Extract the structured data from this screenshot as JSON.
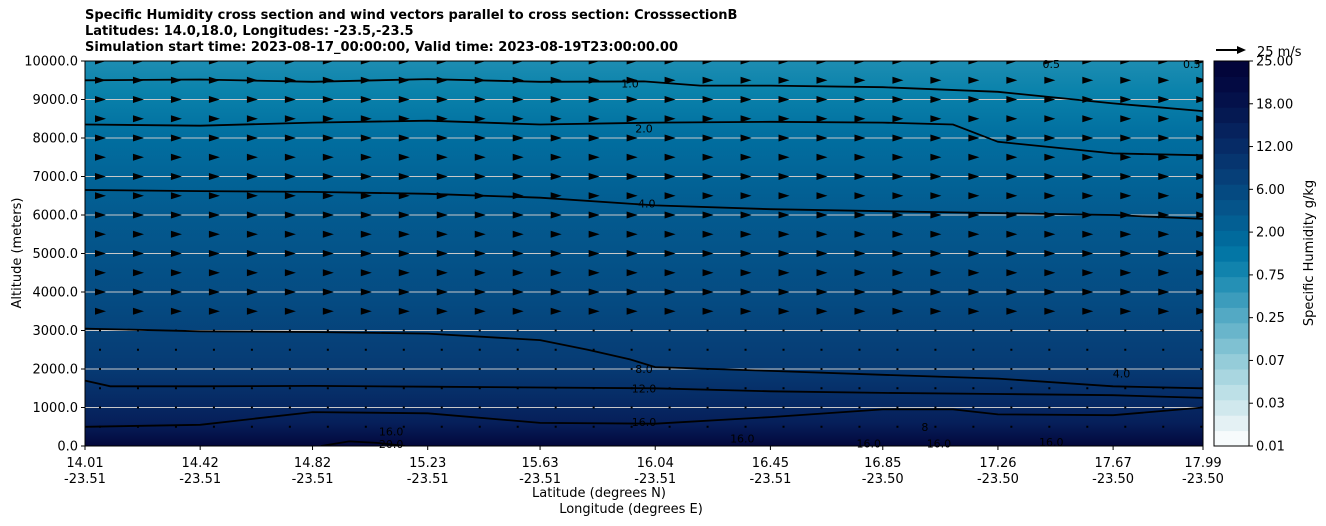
{
  "chart_data": {
    "type": "heatmap",
    "title_lines": [
      "Specific Humidity cross section and wind vectors parallel to cross section: CrosssectionB",
      "Latitudes: 14.0,18.0, Longitudes: -23.5,-23.5",
      "Simulation start time: 2023-08-17_00:00:00, Valid time: 2023-08-19T23:00:00.00"
    ],
    "ylabel": "Altitude (meters)",
    "xlabel_lat": "Latitude (degrees N)",
    "xlabel_lon": "Longitude (degrees E)",
    "ylim": [
      0,
      10000
    ],
    "y_ticks": [
      "0.0",
      "1000.0",
      "2000.0",
      "3000.0",
      "4000.0",
      "5000.0",
      "6000.0",
      "7000.0",
      "8000.0",
      "9000.0",
      "10000.0"
    ],
    "x_ticks": [
      {
        "lat": "14.01",
        "lon": "-23.51"
      },
      {
        "lat": "14.42",
        "lon": "-23.51"
      },
      {
        "lat": "14.82",
        "lon": "-23.51"
      },
      {
        "lat": "15.23",
        "lon": "-23.51"
      },
      {
        "lat": "15.63",
        "lon": "-23.51"
      },
      {
        "lat": "16.04",
        "lon": "-23.51"
      },
      {
        "lat": "16.45",
        "lon": "-23.51"
      },
      {
        "lat": "16.85",
        "lon": "-23.50"
      },
      {
        "lat": "17.26",
        "lon": "-23.50"
      },
      {
        "lat": "17.67",
        "lon": "-23.50"
      },
      {
        "lat": "17.99",
        "lon": "-23.50"
      }
    ],
    "colorbar": {
      "label": "Specific Humidity g/kg",
      "ticks": [
        "0.01",
        "0.03",
        "0.07",
        "0.25",
        "0.75",
        "2.00",
        "6.00",
        "12.00",
        "18.00",
        "25.00"
      ],
      "colors": [
        "#f7fbfc",
        "#e4f1f4",
        "#d0e8ed",
        "#bde0e7",
        "#a9d6e0",
        "#95ccd9",
        "#7fc1d2",
        "#69b5cb",
        "#53a9c4",
        "#3c9cbc",
        "#2590b5",
        "#1183ad",
        "#0376a5",
        "#016a9c",
        "#035f93",
        "#05548a",
        "#054a81",
        "#063f78",
        "#06356f",
        "#062b66",
        "#06225d",
        "#051952",
        "#04114a",
        "#030a42",
        "#02053a"
      ]
    },
    "quiver_key": "25 m/s",
    "contours": [
      {
        "label": "1.0",
        "points": [
          [
            14.01,
            9500
          ],
          [
            14.42,
            9520
          ],
          [
            14.82,
            9460
          ],
          [
            15.23,
            9530
          ],
          [
            15.63,
            9460
          ],
          [
            16.0,
            9470
          ],
          [
            16.2,
            9360
          ],
          [
            16.45,
            9360
          ],
          [
            16.85,
            9320
          ],
          [
            17.26,
            9200
          ],
          [
            17.67,
            8900
          ],
          [
            17.99,
            8700
          ]
        ],
        "label_at": [
          15.95,
          9420
        ]
      },
      {
        "label": "2.0",
        "points": [
          [
            14.01,
            8350
          ],
          [
            14.42,
            8320
          ],
          [
            14.82,
            8400
          ],
          [
            15.23,
            8450
          ],
          [
            15.63,
            8350
          ],
          [
            16.04,
            8400
          ],
          [
            16.45,
            8420
          ],
          [
            16.85,
            8400
          ],
          [
            17.1,
            8350
          ],
          [
            17.26,
            7900
          ],
          [
            17.67,
            7600
          ],
          [
            17.99,
            7550
          ]
        ],
        "label_at": [
          16.0,
          8250
        ]
      },
      {
        "label": "4.0",
        "points": [
          [
            14.01,
            6650
          ],
          [
            14.42,
            6620
          ],
          [
            14.82,
            6600
          ],
          [
            15.23,
            6550
          ],
          [
            15.63,
            6450
          ],
          [
            16.04,
            6250
          ],
          [
            16.45,
            6150
          ],
          [
            16.85,
            6100
          ],
          [
            17.26,
            6050
          ],
          [
            17.67,
            6000
          ],
          [
            17.99,
            5900
          ]
        ],
        "label_at": [
          16.01,
          6300
        ]
      },
      {
        "label": "8.0",
        "points": [
          [
            14.01,
            3050
          ],
          [
            14.42,
            2980
          ],
          [
            14.82,
            2960
          ],
          [
            15.23,
            2920
          ],
          [
            15.63,
            2750
          ],
          [
            15.8,
            2500
          ],
          [
            15.95,
            2250
          ],
          [
            16.04,
            2050
          ],
          [
            16.45,
            1950
          ],
          [
            16.85,
            1850
          ],
          [
            17.26,
            1750
          ],
          [
            17.67,
            1550
          ],
          [
            17.99,
            1500
          ]
        ],
        "label_at": [
          16.0,
          2000
        ]
      },
      {
        "label": "12.0",
        "points": [
          [
            14.01,
            1700
          ],
          [
            14.1,
            1550
          ],
          [
            14.42,
            1550
          ],
          [
            14.82,
            1560
          ],
          [
            15.23,
            1540
          ],
          [
            15.63,
            1520
          ],
          [
            16.04,
            1500
          ],
          [
            16.45,
            1420
          ],
          [
            16.85,
            1380
          ],
          [
            17.26,
            1350
          ],
          [
            17.67,
            1320
          ],
          [
            17.99,
            1250
          ]
        ],
        "label_at": [
          16.0,
          1500
        ]
      },
      {
        "label": "16.0",
        "points": [
          [
            14.01,
            500
          ],
          [
            14.42,
            550
          ],
          [
            14.82,
            880
          ],
          [
            15.23,
            850
          ],
          [
            15.63,
            600
          ],
          [
            16.04,
            580
          ],
          [
            16.45,
            750
          ],
          [
            16.85,
            950
          ],
          [
            17.1,
            950
          ],
          [
            17.26,
            820
          ],
          [
            17.67,
            800
          ],
          [
            17.99,
            1000
          ]
        ],
        "label_at": [
          16.0,
          620
        ]
      },
      {
        "label": "20.0",
        "points": [
          [
            14.85,
            0
          ],
          [
            14.95,
            120
          ],
          [
            15.05,
            80
          ],
          [
            15.15,
            0
          ]
        ],
        "label_at": [
          15.1,
          50
        ]
      }
    ],
    "contour_text_labels": [
      {
        "text": "16.0",
        "at": [
          15.1,
          380
        ]
      },
      {
        "text": "16.0",
        "at": [
          16.35,
          200
        ]
      },
      {
        "text": "16.0",
        "at": [
          16.8,
          60
        ]
      },
      {
        "text": "16.0",
        "at": [
          17.05,
          70
        ]
      },
      {
        "text": "16.0",
        "at": [
          17.45,
          100
        ]
      },
      {
        "text": "4.0",
        "at": [
          17.7,
          1880
        ]
      },
      {
        "text": "8",
        "at": [
          17.0,
          500
        ]
      },
      {
        "text": "0.5",
        "at": [
          17.45,
          9920
        ]
      },
      {
        "text": "0.5",
        "at": [
          17.95,
          9920
        ]
      }
    ]
  }
}
